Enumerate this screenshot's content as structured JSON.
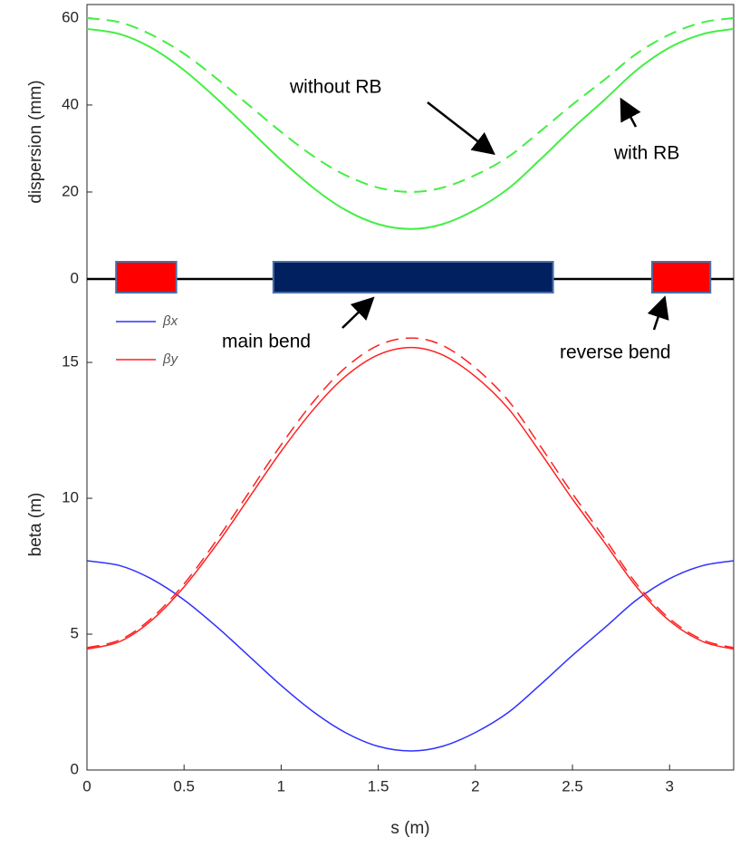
{
  "chart_data": [
    {
      "type": "line",
      "ylabel": "dispersion (mm)",
      "xlim": [
        0,
        3.33
      ],
      "ylim": [
        0,
        63.1
      ],
      "yticks": [
        0,
        20,
        40,
        60
      ],
      "x": [
        0,
        0.17,
        0.33,
        0.5,
        0.67,
        0.83,
        1.0,
        1.17,
        1.33,
        1.5,
        1.67,
        1.83,
        2.0,
        2.17,
        2.33,
        2.5,
        2.67,
        2.83,
        3.0,
        3.17,
        3.33
      ],
      "series": [
        {
          "color": "#44ee44",
          "dash": false,
          "values": [
            57.5,
            56.3,
            53.2,
            48.0,
            41.4,
            34.6,
            27.3,
            20.8,
            15.9,
            12.6,
            11.5,
            12.6,
            15.9,
            20.8,
            27.3,
            34.6,
            41.4,
            48.0,
            53.2,
            56.3,
            57.5
          ]
        },
        {
          "color": "#44ee44",
          "dash": true,
          "values": [
            60,
            59.0,
            56.2,
            51.8,
            46.0,
            40.1,
            33.8,
            28.1,
            23.9,
            21.0,
            20.0,
            21.0,
            23.9,
            28.1,
            33.8,
            40.1,
            46.0,
            51.8,
            56.2,
            59.0,
            60
          ]
        }
      ],
      "magnets": [
        {
          "start": 0.15,
          "end": 0.46,
          "color": "#ff0000"
        },
        {
          "start": 0.96,
          "end": 2.4,
          "color": "#002060"
        },
        {
          "start": 2.91,
          "end": 3.21,
          "color": "#ff0000"
        }
      ],
      "annotations": [
        "without RB",
        "with RB",
        "main bend",
        "reverse bend"
      ]
    },
    {
      "type": "line",
      "ylabel": "beta (m)",
      "xlabel": "s (m)",
      "xlim": [
        0,
        3.33
      ],
      "ylim": [
        0,
        18.07
      ],
      "yticks": [
        0,
        5,
        10,
        15
      ],
      "xticks": [
        0,
        0.5,
        1,
        1.5,
        2,
        2.5,
        3
      ],
      "legend": "upper left",
      "x": [
        0,
        0.17,
        0.33,
        0.5,
        0.67,
        0.83,
        1.0,
        1.17,
        1.33,
        1.5,
        1.67,
        1.83,
        2.0,
        2.17,
        2.33,
        2.5,
        2.67,
        2.83,
        3.0,
        3.17,
        3.33
      ],
      "series": [
        {
          "name": "βx",
          "color": "#3030ff",
          "dash": false,
          "values": [
            7.7,
            7.52,
            7.04,
            6.26,
            5.26,
            4.22,
            3.11,
            2.12,
            1.38,
            0.87,
            0.7,
            0.87,
            1.38,
            2.12,
            3.11,
            4.22,
            5.26,
            6.26,
            7.04,
            7.52,
            7.7
          ]
        },
        {
          "name": "βy",
          "color": "#ff2020",
          "dash": false,
          "values": [
            4.45,
            4.73,
            5.49,
            6.74,
            8.32,
            9.97,
            11.73,
            13.3,
            14.48,
            15.28,
            15.55,
            15.28,
            14.48,
            13.3,
            11.73,
            9.97,
            8.32,
            6.74,
            5.49,
            4.73,
            4.45
          ]
        },
        {
          "color": "#ff2020",
          "dash": true,
          "values": [
            4.5,
            4.79,
            5.57,
            6.85,
            8.48,
            10.17,
            11.97,
            13.59,
            14.8,
            15.63,
            15.9,
            15.63,
            14.8,
            13.59,
            11.97,
            10.17,
            8.48,
            6.85,
            5.57,
            4.79,
            4.5
          ]
        }
      ]
    }
  ]
}
